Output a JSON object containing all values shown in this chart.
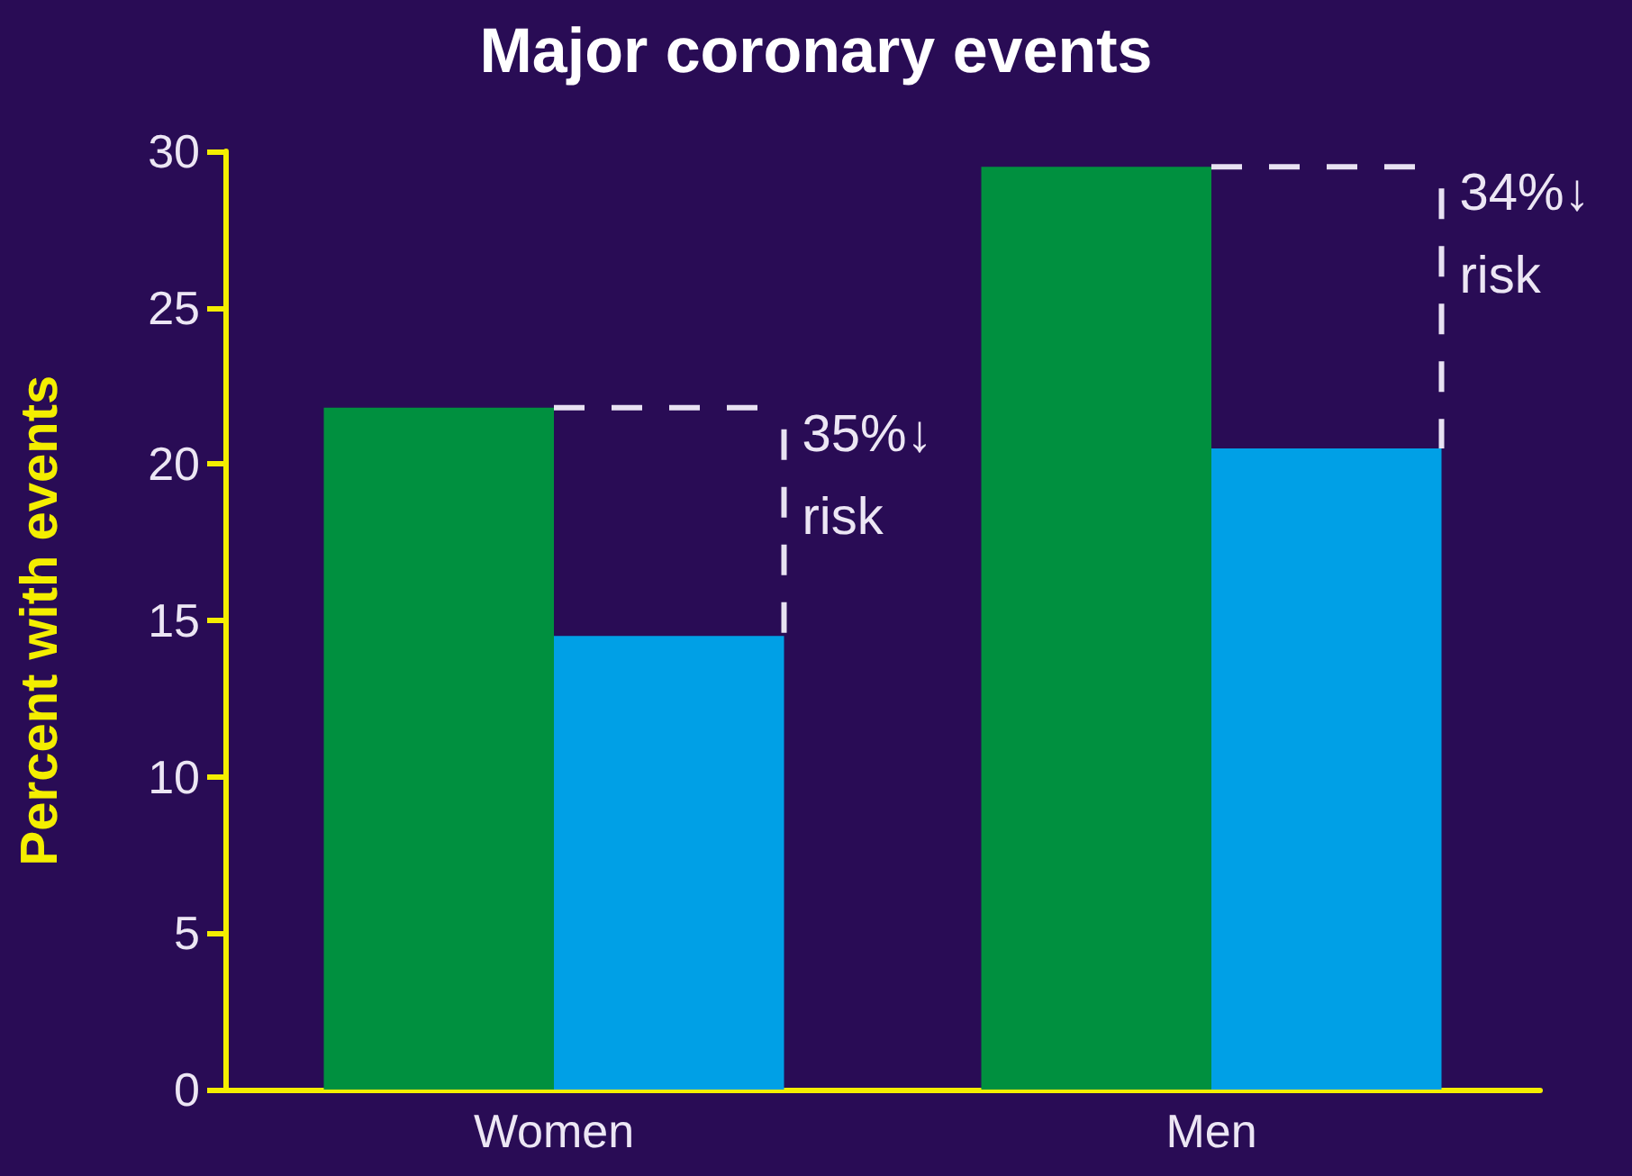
{
  "chart_data": {
    "type": "bar",
    "title": "Major coronary events",
    "ylabel": "Percent with events",
    "categories": [
      "Women",
      "Men"
    ],
    "series": [
      {
        "color": "#00903f",
        "values": [
          21.8,
          29.5
        ]
      },
      {
        "color": "#00a0e6",
        "values": [
          14.5,
          20.5
        ]
      }
    ],
    "ylim": [
      0,
      30
    ],
    "yticks": [
      0,
      5,
      10,
      15,
      20,
      25,
      30
    ],
    "grid": false,
    "annotations": [
      {
        "text": "35%↓ risk",
        "x": "Women",
        "y": 21.8
      },
      {
        "text": "34%↓ risk",
        "x": "Men",
        "y": 29.5
      }
    ]
  }
}
